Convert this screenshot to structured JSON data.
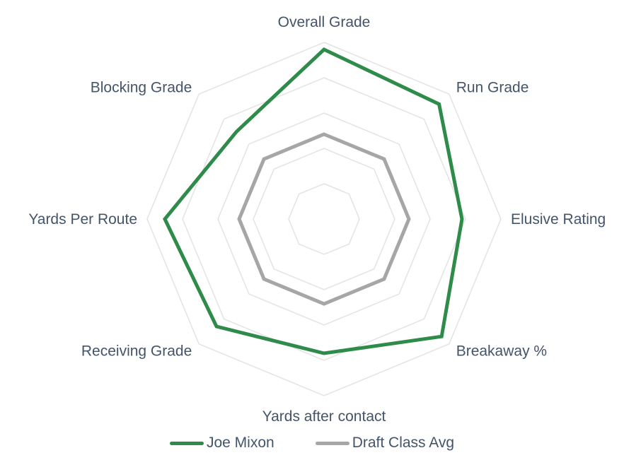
{
  "chart_data": {
    "type": "radar",
    "categories": [
      "Overall Grade",
      "Run Grade",
      "Elusive Rating",
      "Breakaway %",
      "Yards after contact",
      "Receiving Grade",
      "Yards Per Route",
      "Blocking Grade"
    ],
    "series": [
      {
        "name": "Joe Mixon",
        "color": "#2e8b4a",
        "values": [
          0.96,
          0.92,
          0.78,
          0.94,
          0.76,
          0.86,
          0.9,
          0.7
        ]
      },
      {
        "name": "Draft Class Avg",
        "color": "#a6a6a6",
        "values": [
          0.48,
          0.48,
          0.48,
          0.48,
          0.48,
          0.48,
          0.48,
          0.48
        ]
      }
    ],
    "range": [
      0,
      1
    ],
    "rings": 5,
    "grid": true,
    "legend_position": "bottom",
    "grid_color": "#e3e3e3"
  }
}
